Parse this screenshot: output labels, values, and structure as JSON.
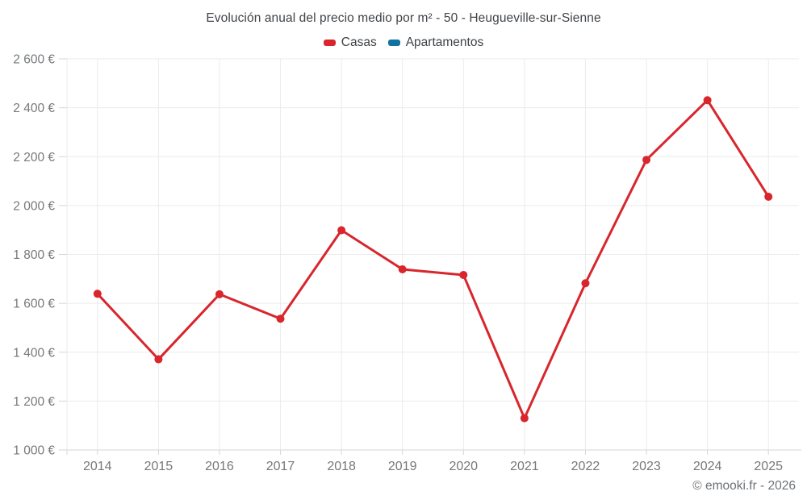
{
  "title": "Evolución anual del precio medio por m² - 50 - Heugueville-sur-Sienne",
  "footer": "© emooki.fr - 2026",
  "legend": {
    "items": [
      {
        "label": "Casas",
        "color": "#d8262c"
      },
      {
        "label": "Apartamentos",
        "color": "#10739f"
      }
    ]
  },
  "colors": {
    "casas_red": "#d8262c",
    "apartamentos_blue": "#10739f",
    "grid": "#ebebeb",
    "axis_line": "#d6d6d6",
    "tick": "#d6d6d6",
    "axis_label": "#75787b",
    "title_text": "#404448",
    "background": "#ffffff"
  },
  "chart_data": {
    "type": "line",
    "title": "Evolución anual del precio medio por m² - 50 - Heugueville-sur-Sienne",
    "xlabel": "",
    "ylabel": "",
    "x": [
      2014,
      2015,
      2016,
      2017,
      2018,
      2019,
      2020,
      2021,
      2022,
      2023,
      2024,
      2025
    ],
    "xtick_labels": [
      "2014",
      "2015",
      "2016",
      "2017",
      "2018",
      "2019",
      "2020",
      "2021",
      "2022",
      "2023",
      "2024",
      "2025"
    ],
    "series": [
      {
        "name": "Casas",
        "color": "#d8262c",
        "values": [
          1639,
          1371,
          1637,
          1537,
          1899,
          1739,
          1716,
          1130,
          1682,
          2187,
          2431,
          2036
        ]
      },
      {
        "name": "Apartamentos",
        "color": "#10739f",
        "values": []
      }
    ],
    "ylim": [
      1000,
      2600
    ],
    "ytick_values": [
      1000,
      1200,
      1400,
      1600,
      1800,
      2000,
      2200,
      2400,
      2600
    ],
    "ytick_labels": [
      "1 000 €",
      "1 200 €",
      "1 400 €",
      "1 600 €",
      "1 800 €",
      "2 000 €",
      "2 200 €",
      "2 400 €",
      "2 600 €"
    ],
    "grid": true,
    "legend_position": "top",
    "marker": "circle"
  }
}
